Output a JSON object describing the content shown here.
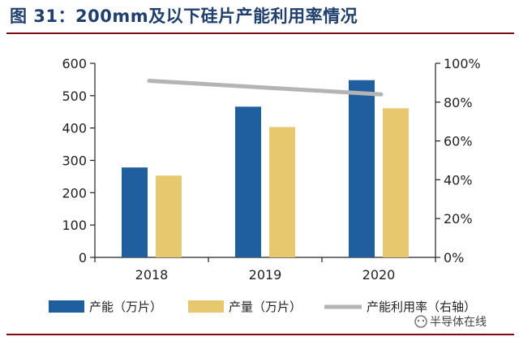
{
  "figure_title": "图 31：200mm及以下硅片产能利用率情况",
  "watermark": "半导体在线",
  "colors": {
    "capacity": "#1f5fa0",
    "output": "#e7c86e",
    "utilization": "#b4b4b4",
    "axis": "#222222",
    "rule": "#7a0e14"
  },
  "chart_data": {
    "type": "bar",
    "categories": [
      "2018",
      "2019",
      "2020"
    ],
    "series": [
      {
        "name": "产能（万片）",
        "type": "bar",
        "axis": "left",
        "values": [
          278,
          466,
          548
        ]
      },
      {
        "name": "产量（万片）",
        "type": "bar",
        "axis": "left",
        "values": [
          253,
          403,
          461
        ]
      },
      {
        "name": "产能利用率（右轴）",
        "type": "line",
        "axis": "right",
        "values": [
          91,
          86.5,
          84
        ]
      }
    ],
    "y_left": {
      "min": 0,
      "max": 600,
      "ticks": [
        "0",
        "100",
        "200",
        "300",
        "400",
        "500",
        "600"
      ]
    },
    "y_right": {
      "min": 0,
      "max": 100,
      "ticks": [
        "0%",
        "20%",
        "40%",
        "60%",
        "80%",
        "100%"
      ]
    },
    "grid": false,
    "legend": "bottom"
  }
}
